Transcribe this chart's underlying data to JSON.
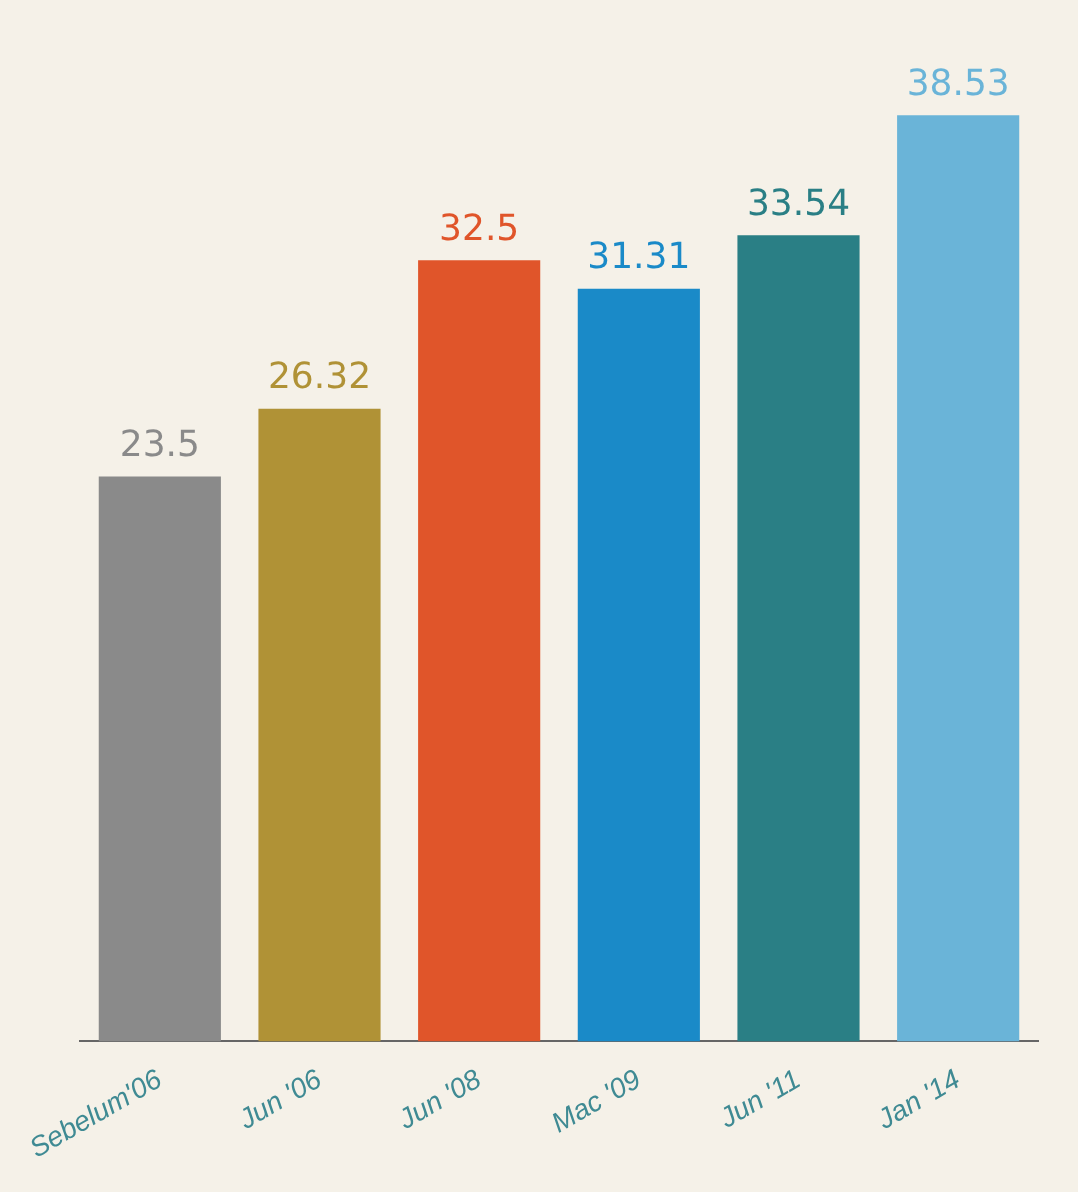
{
  "chart_data": {
    "type": "bar",
    "categories": [
      "Sebelum'06",
      "Jun '06",
      "Jun '08",
      "Mac '09",
      "Jun '11",
      "Jan '14"
    ],
    "values": [
      23.5,
      26.32,
      32.5,
      31.31,
      33.54,
      38.53
    ],
    "colors": [
      "#8a8a8a",
      "#b09236",
      "#e0552a",
      "#1a8ac8",
      "#2a7f85",
      "#6ab4d8"
    ],
    "data_labels": true,
    "legend": false,
    "grid": false
  }
}
